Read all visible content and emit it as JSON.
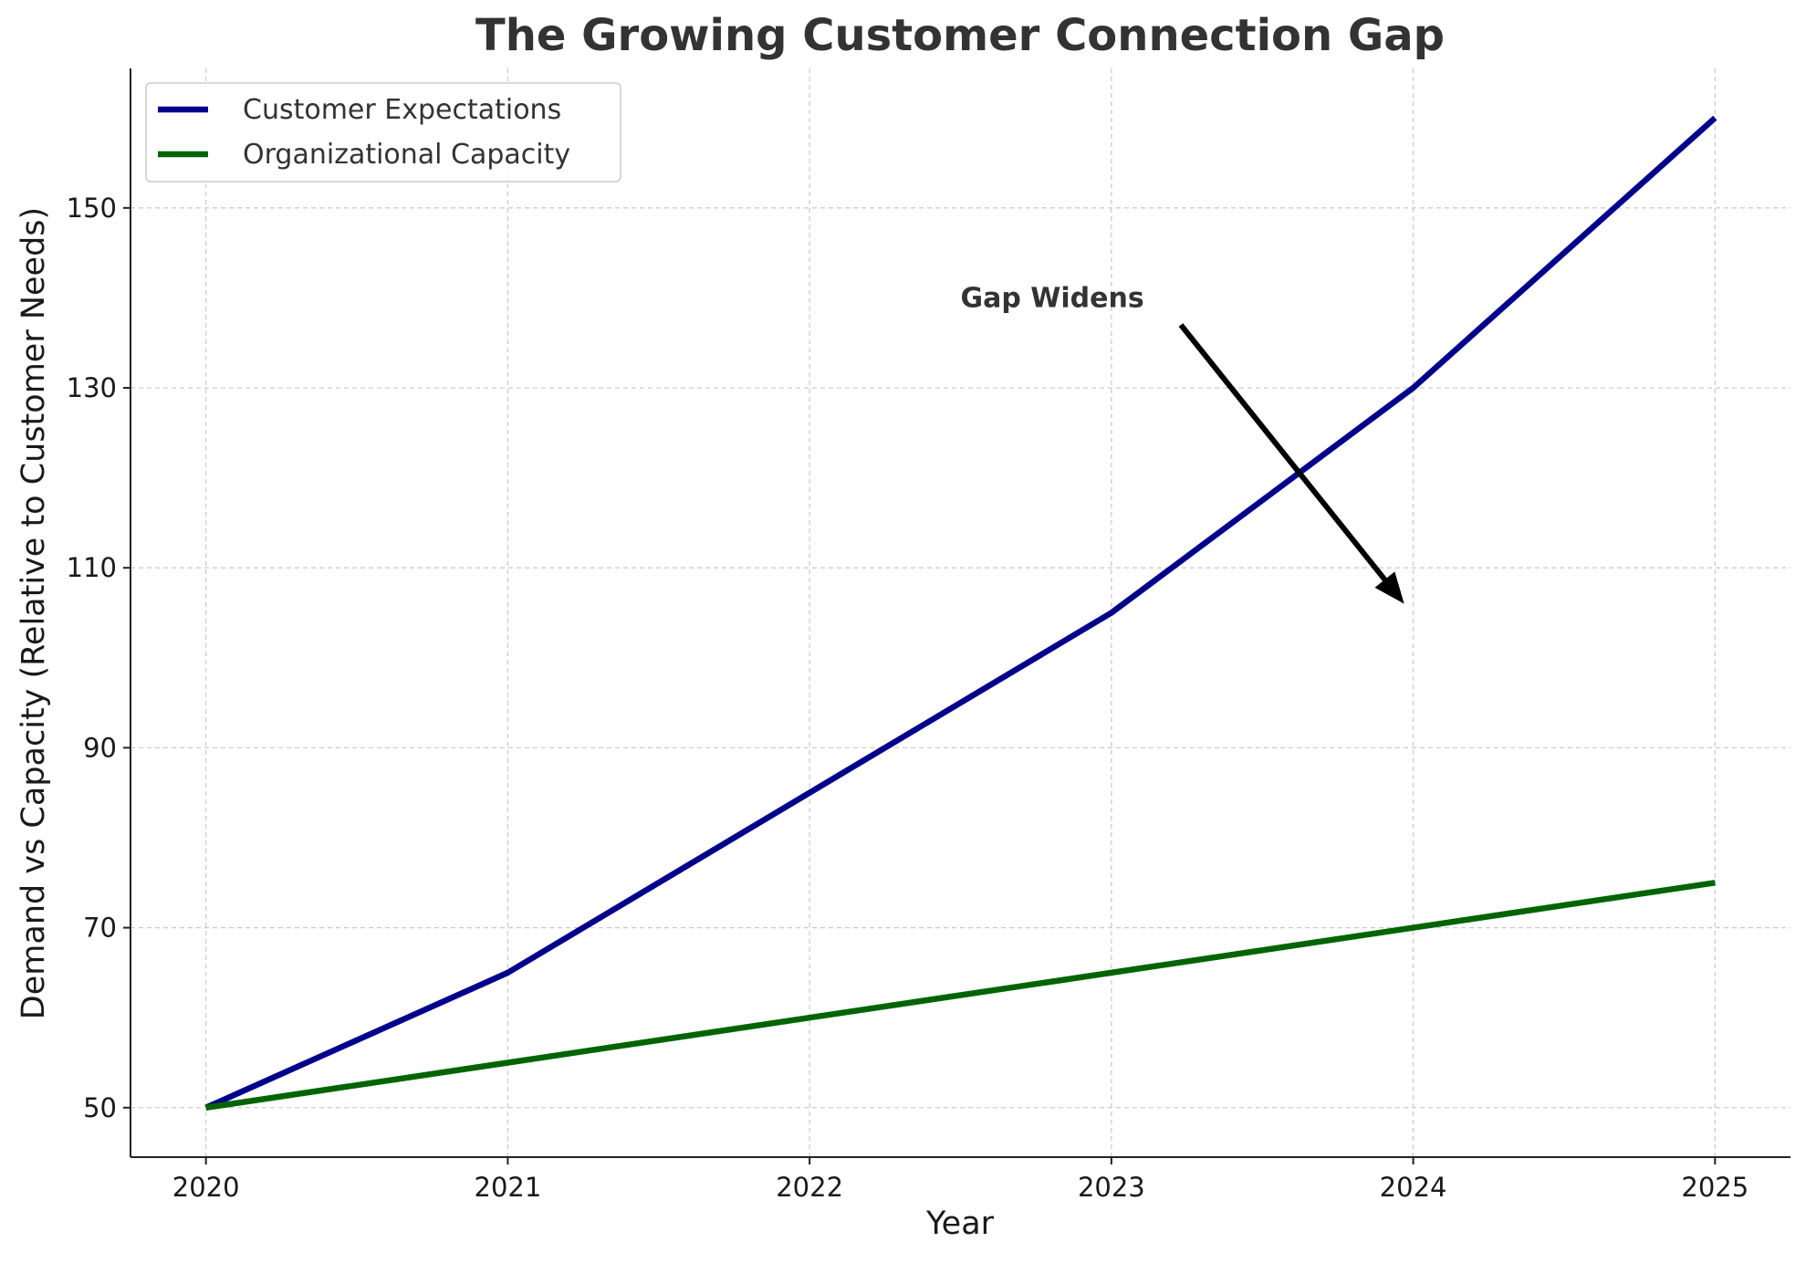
{
  "chart_data": {
    "type": "line",
    "title": "The Growing Customer Connection Gap",
    "xlabel": "Year",
    "ylabel": "Demand vs Capacity (Relative to Customer Needs)",
    "x": [
      2020,
      2021,
      2022,
      2023,
      2024,
      2025
    ],
    "x_tick_labels": [
      "2020",
      "2021",
      "2022",
      "2023",
      "2024",
      "2025"
    ],
    "xlim": [
      2019.75,
      2025.25
    ],
    "y_ticks": [
      50,
      70,
      90,
      110,
      130,
      150
    ],
    "y_tick_labels": [
      "50",
      "70",
      "90",
      "110",
      "130",
      "150"
    ],
    "ylim": [
      44.5,
      165.5
    ],
    "grid": true,
    "legend_position": "upper-left",
    "series": [
      {
        "name": "Customer Expectations",
        "color": "#00008b",
        "values": [
          50,
          65,
          85,
          105,
          130,
          160
        ]
      },
      {
        "name": "Organizational Capacity",
        "color": "#006400",
        "values": [
          50,
          55,
          60,
          65,
          70,
          75
        ]
      }
    ],
    "annotations": [
      {
        "text": "Gap Widens",
        "text_x": 2022.5,
        "text_y": 140,
        "arrow_from": [
          2023.23,
          137
        ],
        "arrow_to": [
          2023.97,
          106
        ]
      }
    ]
  }
}
